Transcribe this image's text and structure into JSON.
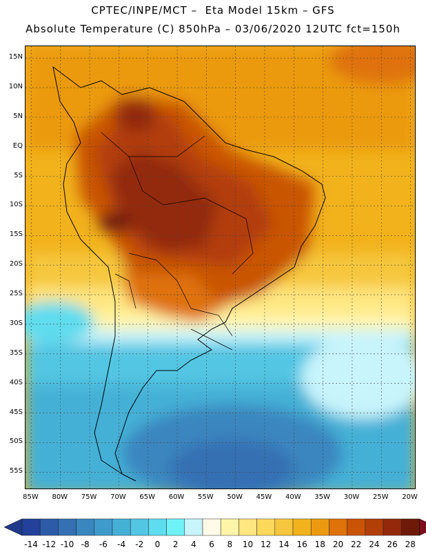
{
  "header": {
    "line1": "CPTEC/INPE/MCT –  Eta Model 15km – GFS",
    "line2": "Absolute Temperature (C) 850hPa – 03/06/2020 12UTC fct=150h"
  },
  "map": {
    "region": "South America",
    "variable": "Absolute Temperature (C) 850hPa",
    "lat_range": [
      -58,
      17
    ],
    "lon_range": [
      -86,
      -19
    ],
    "lat_ticks": [
      "15N",
      "10N",
      "5N",
      "EQ",
      "5S",
      "10S",
      "15S",
      "20S",
      "25S",
      "30S",
      "35S",
      "40S",
      "45S",
      "50S",
      "55S"
    ],
    "lon_ticks": [
      "85W",
      "80W",
      "75W",
      "70W",
      "65W",
      "60W",
      "55W",
      "50W",
      "45W",
      "40W",
      "35W",
      "30W",
      "25W",
      "20W"
    ]
  },
  "colorbar": {
    "labels": [
      "-14",
      "-12",
      "-10",
      "-8",
      "-6",
      "-4",
      "-2",
      "0",
      "2",
      "4",
      "6",
      "8",
      "10",
      "12",
      "14",
      "16",
      "18",
      "20",
      "22",
      "24",
      "26",
      "28"
    ],
    "colors": [
      "#23409a",
      "#2d5ba8",
      "#3570b3",
      "#3a86bf",
      "#3f9bcb",
      "#45b0d6",
      "#52c6e3",
      "#5fdcee",
      "#6ef2f8",
      "#c8f4fc",
      "#fffae8",
      "#fff4a8",
      "#ffe680",
      "#fcd95a",
      "#f6c73e",
      "#f1b21c",
      "#eb9a10",
      "#df7208",
      "#c95406",
      "#b23e08",
      "#93290a",
      "#6e1a08"
    ],
    "under_color": "#1f3a8a",
    "over_color": "#7c0f1e"
  }
}
